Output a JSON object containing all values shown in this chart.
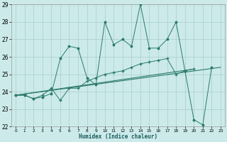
{
  "x": [
    0,
    1,
    2,
    3,
    4,
    5,
    6,
    7,
    8,
    9,
    10,
    11,
    12,
    13,
    14,
    15,
    16,
    17,
    18,
    19,
    20,
    21,
    22,
    23
  ],
  "line1": [
    23.8,
    23.8,
    23.6,
    23.7,
    23.9,
    25.9,
    26.6,
    26.5,
    24.8,
    24.4,
    28.0,
    26.7,
    27.0,
    26.6,
    29.0,
    26.5,
    26.5,
    27.0,
    28.0,
    25.2,
    22.4,
    22.1,
    25.4,
    null
  ],
  "line2": [
    23.8,
    23.8,
    23.6,
    23.8,
    24.2,
    23.5,
    24.2,
    24.2,
    24.6,
    24.8,
    25.0,
    25.1,
    25.2,
    25.4,
    25.6,
    25.7,
    25.8,
    25.9,
    25.0,
    25.2,
    25.3,
    null,
    null,
    null
  ],
  "line3_x": [
    0,
    23
  ],
  "line3_y": [
    23.8,
    25.4
  ],
  "line4_x": [
    0,
    20
  ],
  "line4_y": [
    23.8,
    25.3
  ],
  "bg_color": "#cceaea",
  "line_color": "#2a7a6a",
  "grid_color": "#aacccc",
  "xlabel": "Humidex (Indice chaleur)",
  "ylim": [
    22,
    29
  ],
  "xlim": [
    -0.5,
    23.5
  ],
  "yticks": [
    22,
    23,
    24,
    25,
    26,
    27,
    28,
    29
  ],
  "xticks": [
    0,
    1,
    2,
    3,
    4,
    5,
    6,
    7,
    8,
    9,
    10,
    11,
    12,
    13,
    14,
    15,
    16,
    17,
    18,
    19,
    20,
    21,
    22,
    23
  ],
  "xtick_labels": [
    "0",
    "1",
    "2",
    "3",
    "4",
    "5",
    "6",
    "7",
    "8",
    "9",
    "10",
    "11",
    "12",
    "13",
    "14",
    "15",
    "16",
    "17",
    "18",
    "19",
    "20",
    "21",
    "22",
    "23"
  ]
}
